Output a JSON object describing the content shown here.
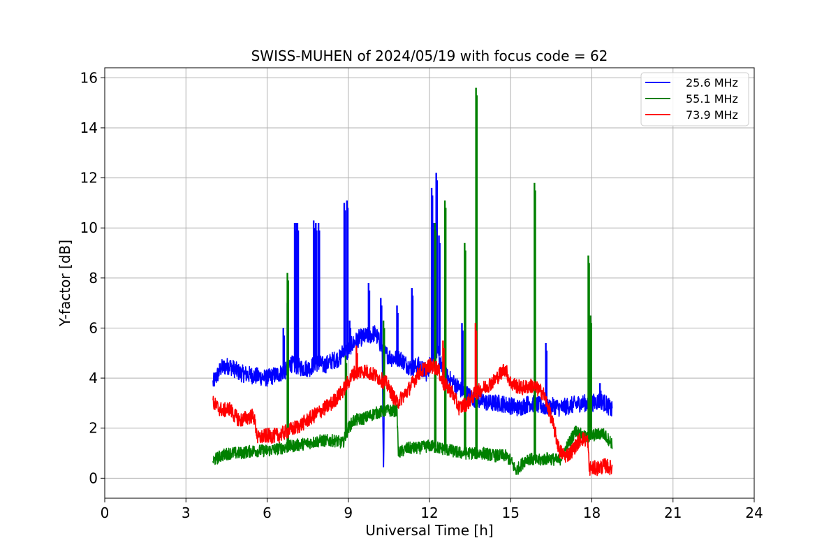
{
  "chart_data": {
    "type": "line",
    "title": "SWISS-MUHEN of 2024/05/19 with focus code = 62",
    "xlabel": "Universal Time [h]",
    "ylabel": "Y-factor [dB]",
    "xlim": [
      0,
      24
    ],
    "ylim": [
      -0.8,
      16.4
    ],
    "xticks": [
      0,
      3,
      6,
      9,
      12,
      15,
      18,
      21,
      24
    ],
    "yticks": [
      0,
      2,
      4,
      6,
      8,
      10,
      12,
      14,
      16
    ],
    "grid": true,
    "legend_position": "top-right",
    "colors": {
      "25.6 MHz": "#0000ff",
      "55.1 MHz": "#008000",
      "73.9 MHz": "#ff0000"
    },
    "series": [
      {
        "name": "25.6 MHz",
        "color": "#0000ff",
        "noise": 0.35,
        "x": [
          4.0,
          4.3,
          4.6,
          5.0,
          5.5,
          6.0,
          6.5,
          6.7,
          6.85,
          7.0,
          7.1,
          7.3,
          7.6,
          7.75,
          7.9,
          8.1,
          8.4,
          8.7,
          8.85,
          8.95,
          9.1,
          9.4,
          9.8,
          10.0,
          10.25,
          10.3,
          10.35,
          10.6,
          10.9,
          11.3,
          11.6,
          11.9,
          12.1,
          12.25,
          12.35,
          12.5,
          12.8,
          13.2,
          13.6,
          13.9,
          14.2,
          14.6,
          15.0,
          15.3,
          15.7,
          16.1,
          16.4,
          16.6,
          16.8,
          17.2,
          17.6,
          18.0,
          18.3,
          18.5,
          18.75
        ],
        "y": [
          3.8,
          4.4,
          4.5,
          4.2,
          4.1,
          4.0,
          4.2,
          4.3,
          4.6,
          4.5,
          4.5,
          4.4,
          4.4,
          4.6,
          4.6,
          4.5,
          4.7,
          4.8,
          5.2,
          5.0,
          5.3,
          5.6,
          5.7,
          5.8,
          5.2,
          0.1,
          5.0,
          4.8,
          4.8,
          4.4,
          4.5,
          4.2,
          4.8,
          5.0,
          4.9,
          4.2,
          3.9,
          3.5,
          3.2,
          3.1,
          3.0,
          3.0,
          2.9,
          2.8,
          3.0,
          2.9,
          2.8,
          2.9,
          2.8,
          2.9,
          3.0,
          3.0,
          3.1,
          3.0,
          2.7
        ],
        "spikes": [
          [
            6.6,
            6.0
          ],
          [
            6.75,
            7.0
          ],
          [
            7.02,
            10.2
          ],
          [
            7.08,
            10.2
          ],
          [
            7.12,
            10.2
          ],
          [
            7.72,
            10.3
          ],
          [
            7.8,
            10.2
          ],
          [
            7.9,
            10.2
          ],
          [
            8.85,
            11.0
          ],
          [
            8.95,
            11.1
          ],
          [
            9.05,
            6.3
          ],
          [
            9.75,
            7.8
          ],
          [
            10.2,
            7.2
          ],
          [
            10.8,
            6.9
          ],
          [
            11.35,
            7.6
          ],
          [
            12.08,
            11.6
          ],
          [
            12.17,
            10.2
          ],
          [
            12.25,
            12.2
          ],
          [
            12.35,
            9.7
          ],
          [
            13.2,
            6.2
          ],
          [
            16.3,
            5.4
          ],
          [
            17.9,
            4.7
          ],
          [
            18.3,
            3.8
          ]
        ]
      },
      {
        "name": "55.1 MHz",
        "color": "#008000",
        "noise": 0.25,
        "x": [
          4.0,
          4.3,
          4.6,
          5.0,
          5.5,
          6.0,
          6.5,
          7.0,
          7.5,
          8.0,
          8.5,
          8.8,
          9.0,
          9.2,
          9.6,
          10.0,
          10.4,
          10.8,
          10.85,
          11.2,
          11.6,
          12.0,
          12.4,
          12.8,
          13.2,
          13.6,
          14.0,
          14.4,
          14.8,
          15.0,
          15.2,
          15.6,
          16.0,
          16.4,
          16.8,
          17.2,
          17.4,
          17.8,
          18.0,
          18.4,
          18.75
        ],
        "y": [
          0.7,
          0.9,
          1.0,
          1.0,
          1.1,
          1.1,
          1.2,
          1.3,
          1.4,
          1.5,
          1.5,
          1.4,
          2.0,
          2.3,
          2.4,
          2.6,
          2.7,
          2.7,
          1.0,
          1.2,
          1.2,
          1.3,
          1.2,
          1.1,
          1.0,
          1.0,
          1.0,
          0.9,
          0.9,
          0.7,
          0.3,
          0.8,
          0.7,
          0.8,
          0.7,
          1.5,
          1.9,
          1.6,
          1.7,
          1.8,
          1.4
        ],
        "spikes": [
          [
            6.75,
            8.2
          ],
          [
            8.9,
            4.9
          ],
          [
            10.3,
            6.3
          ],
          [
            12.2,
            10.2
          ],
          [
            12.57,
            11.1
          ],
          [
            13.3,
            9.4
          ],
          [
            13.72,
            15.6
          ],
          [
            15.88,
            11.8
          ],
          [
            17.87,
            8.9
          ],
          [
            17.95,
            6.5
          ]
        ]
      },
      {
        "name": "73.9 MHz",
        "color": "#ff0000",
        "noise": 0.3,
        "x": [
          4.0,
          4.2,
          4.4,
          4.6,
          4.8,
          5.0,
          5.2,
          5.5,
          5.65,
          6.0,
          6.4,
          6.8,
          7.2,
          7.6,
          8.0,
          8.4,
          8.8,
          9.2,
          9.6,
          10.0,
          10.4,
          10.8,
          11.2,
          11.6,
          12.0,
          12.3,
          12.5,
          12.8,
          13.1,
          13.4,
          13.7,
          14.0,
          14.4,
          14.8,
          15.0,
          15.4,
          15.8,
          16.2,
          16.4,
          16.6,
          16.8,
          17.0,
          17.2,
          17.4,
          17.6,
          17.85,
          17.9,
          18.2,
          18.5,
          18.75
        ],
        "y": [
          3.0,
          2.8,
          2.7,
          2.8,
          2.5,
          2.3,
          2.4,
          2.5,
          1.6,
          1.7,
          1.7,
          1.9,
          2.1,
          2.4,
          2.7,
          3.0,
          3.5,
          4.2,
          4.3,
          4.1,
          3.8,
          3.0,
          3.5,
          4.2,
          4.5,
          4.4,
          3.8,
          3.5,
          2.8,
          3.0,
          3.4,
          3.6,
          3.9,
          4.4,
          3.8,
          3.6,
          3.7,
          3.4,
          2.8,
          2.0,
          1.1,
          0.9,
          1.0,
          1.3,
          1.6,
          1.5,
          0.4,
          0.4,
          0.5,
          0.4
        ],
        "spikes": [
          [
            13.7,
            6.2
          ],
          [
            9.3,
            5.3
          ],
          [
            12.5,
            5.5
          ]
        ]
      }
    ]
  }
}
